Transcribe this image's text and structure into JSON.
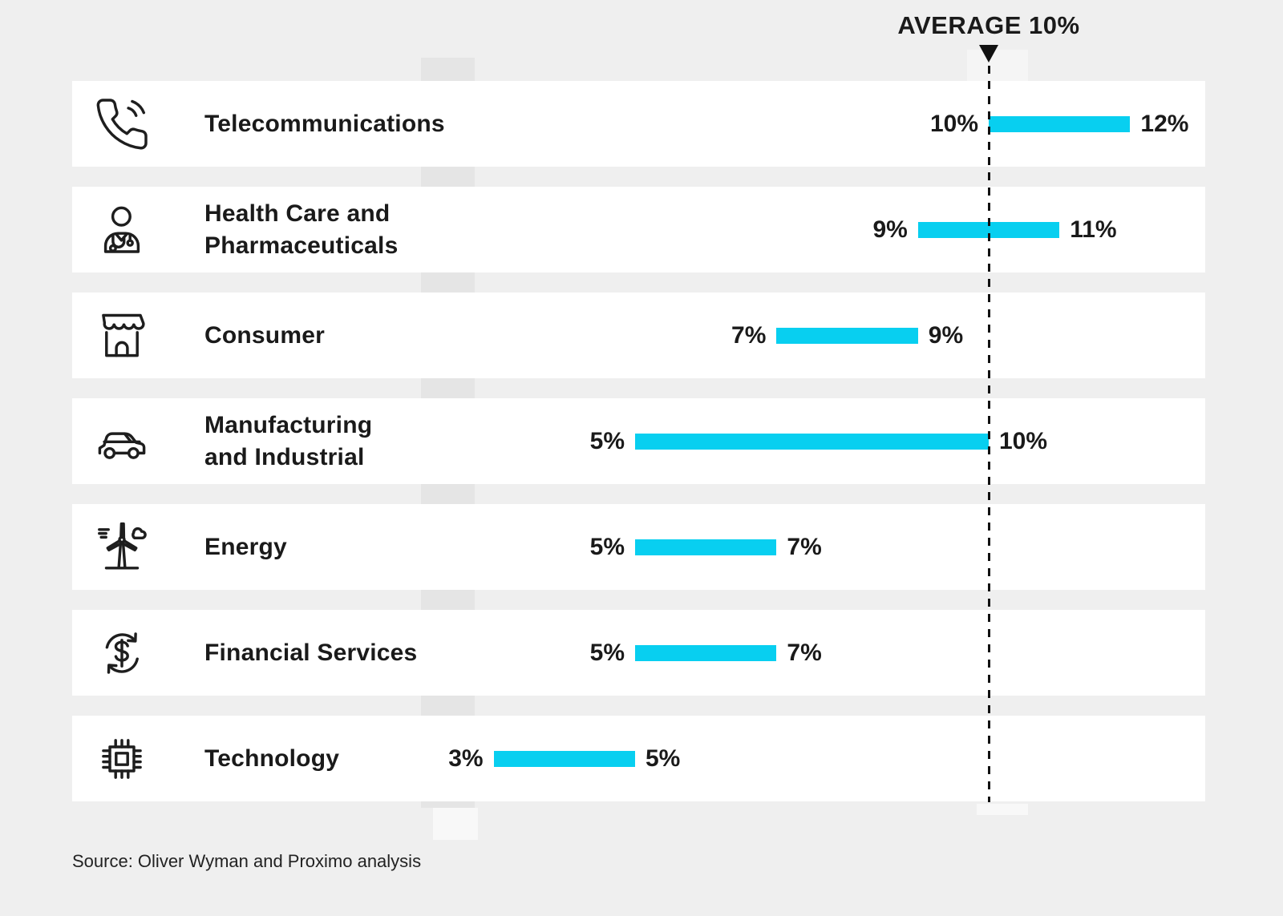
{
  "chart_data": {
    "type": "bar",
    "subtype": "horizontal-range-bars",
    "unit": "%",
    "average": {
      "label": "AVERAGE 10%",
      "value": 10
    },
    "axis": {
      "min": 0,
      "max": 13,
      "gridlines": false,
      "tick_labels_shown": false
    },
    "legend": "none",
    "categories": [
      "Telecommunications",
      "Health Care and Pharmaceuticals",
      "Consumer",
      "Manufacturing and Industrial",
      "Energy",
      "Financial Services",
      "Technology"
    ],
    "series": [
      {
        "name": "range",
        "values": [
          [
            10,
            12
          ],
          [
            9,
            11
          ],
          [
            7,
            9
          ],
          [
            5,
            10
          ],
          [
            5,
            7
          ],
          [
            5,
            7
          ],
          [
            3,
            5
          ]
        ]
      }
    ],
    "rows": [
      {
        "label": "Telecommunications",
        "icon": "phone-icon",
        "min": 10,
        "max": 12,
        "min_label": "10%",
        "max_label": "12%"
      },
      {
        "label": "Health Care and\nPharmaceuticals",
        "icon": "doctor-icon",
        "min": 9,
        "max": 11,
        "min_label": "9%",
        "max_label": "11%"
      },
      {
        "label": "Consumer",
        "icon": "storefront-icon",
        "min": 7,
        "max": 9,
        "min_label": "7%",
        "max_label": "9%"
      },
      {
        "label": "Manufacturing\nand Industrial",
        "icon": "car-icon",
        "min": 5,
        "max": 10,
        "min_label": "5%",
        "max_label": "10%"
      },
      {
        "label": "Energy",
        "icon": "wind-turbine-icon",
        "min": 5,
        "max": 7,
        "min_label": "5%",
        "max_label": "7%"
      },
      {
        "label": "Financial Services",
        "icon": "currency-exchange-icon",
        "min": 5,
        "max": 7,
        "min_label": "5%",
        "max_label": "7%"
      },
      {
        "label": "Technology",
        "icon": "microchip-icon",
        "min": 3,
        "max": 5,
        "min_label": "3%",
        "max_label": "5%"
      }
    ],
    "source": "Source: Oliver Wyman and Proximo analysis"
  },
  "colors": {
    "bar": "#08CFF0",
    "page_bg": "#EFEFEF",
    "row_bg": "#FFFFFF",
    "text": "#1A1A1A",
    "average_line": "#111111"
  }
}
